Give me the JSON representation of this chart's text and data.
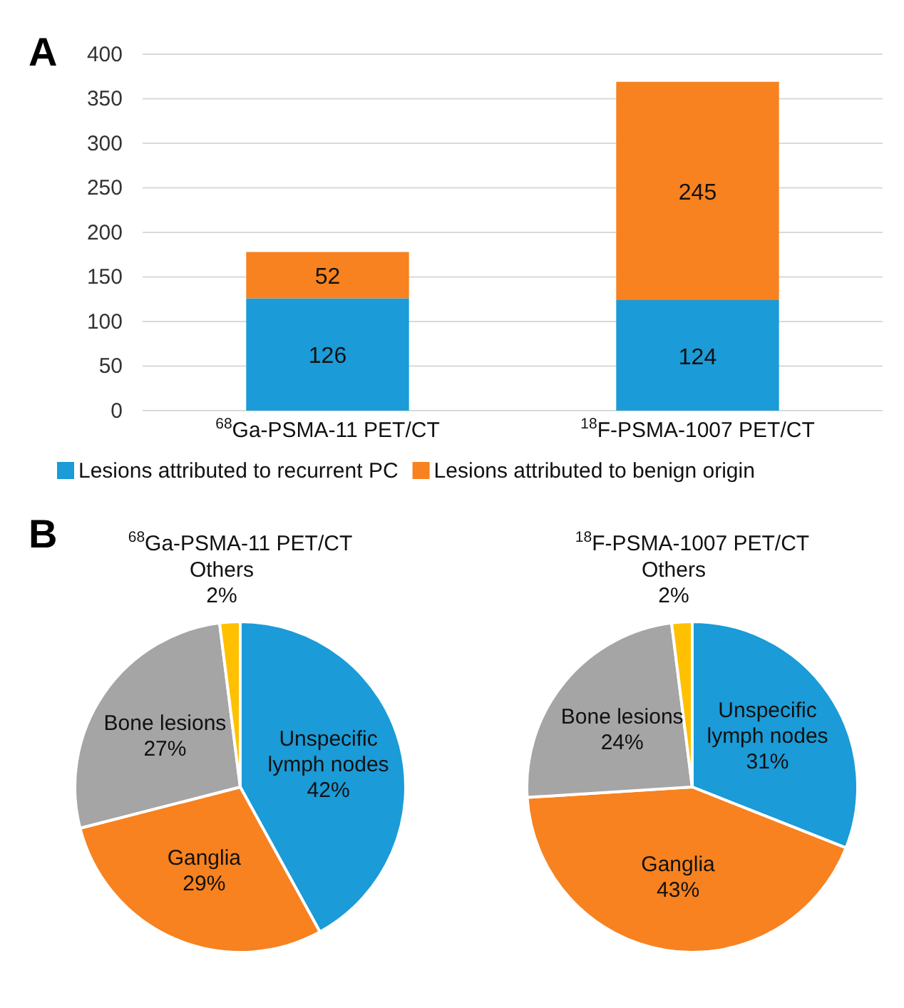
{
  "chart_data": [
    {
      "type": "bar",
      "stacked": true,
      "annotations": [
        "A",
        "B"
      ],
      "categories": [
        "$^{68}$Ga-PSMA-11 PET/CT",
        "$^{18}$F-PSMA-1007 PET/CT"
      ],
      "series": [
        {
          "name": "Lesions attributed to recurrent PC",
          "color": "#1b9bd7",
          "values": [
            126,
            124
          ]
        },
        {
          "name": "Lesions attributed to benign origin",
          "color": "#f7821f",
          "values": [
            52,
            245
          ]
        }
      ],
      "ylim": [
        0,
        400
      ],
      "yticks": [
        0,
        50,
        100,
        150,
        200,
        250,
        300,
        350,
        400
      ],
      "grid": "y",
      "legend": "bottom",
      "data_labels": true
    },
    {
      "type": "pie",
      "title": "$^{68}$Ga-PSMA-11 PET/CT",
      "categories": [
        "Unspecific lymph nodes",
        "Ganglia",
        "Bone lesions",
        "Others"
      ],
      "values": [
        42,
        29,
        27,
        2
      ],
      "value_labels": [
        "42%",
        "29%",
        "27%",
        "2%"
      ],
      "colors": [
        "#1b9bd7",
        "#f7821f",
        "#a5a5a5",
        "#ffc000"
      ]
    },
    {
      "type": "pie",
      "title": "$^{18}$F-PSMA-1007 PET/CT",
      "categories": [
        "Unspecific lymph nodes",
        "Ganglia",
        "Bone lesions",
        "Others"
      ],
      "values": [
        31,
        43,
        24,
        2
      ],
      "value_labels": [
        "31%",
        "43%",
        "24%",
        "2%"
      ],
      "colors": [
        "#1b9bd7",
        "#f7821f",
        "#a5a5a5",
        "#ffc000"
      ]
    }
  ]
}
